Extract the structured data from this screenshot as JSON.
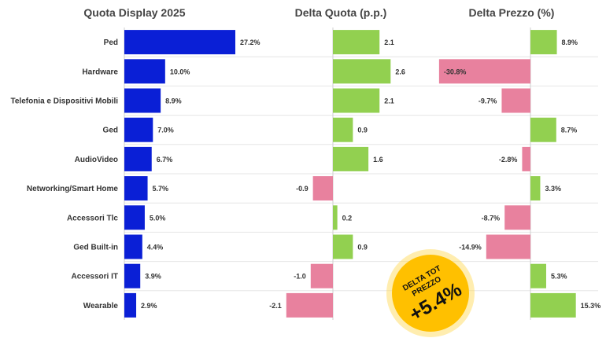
{
  "headers": {
    "quota": "Quota Display 2025",
    "delta_quota": "Delta Quota (p.p.)",
    "delta_prezzo": "Delta Prezzo (%)"
  },
  "badge": {
    "line1": "DELTA TOT",
    "line2": "PREZZO",
    "value": "+5.4%"
  },
  "colors": {
    "quota_bar": "#0a1fd6",
    "positive": "#92d050",
    "negative": "#e8819e",
    "badge_fill": "#ffc000",
    "badge_glow": "#ffd84d"
  },
  "chart_data": [
    {
      "type": "bar",
      "orientation": "horizontal",
      "title": "Quota Display 2025",
      "categories": [
        "Ped",
        "Hardware",
        "Telefonia e Dispositivi Mobili",
        "Ged",
        "AudioVideo",
        "Networking/Smart Home",
        "Accessori Tlc",
        "Ged Built-in",
        "Accessori IT",
        "Wearable"
      ],
      "values": [
        27.2,
        10.0,
        8.9,
        7.0,
        6.7,
        5.7,
        5.0,
        4.4,
        3.9,
        2.9
      ],
      "labels": [
        "27.2%",
        "10.0%",
        "8.9%",
        "7.0%",
        "6.7%",
        "5.7%",
        "5.0%",
        "4.4%",
        "3.9%",
        "2.9%"
      ]
    },
    {
      "type": "bar",
      "orientation": "horizontal",
      "title": "Delta Quota (p.p.)",
      "categories": [
        "Ped",
        "Hardware",
        "Telefonia e Dispositivi Mobili",
        "Ged",
        "AudioVideo",
        "Networking/Smart Home",
        "Accessori Tlc",
        "Ged Built-in",
        "Accessori IT",
        "Wearable"
      ],
      "values": [
        2.1,
        2.6,
        2.1,
        0.9,
        1.6,
        -0.9,
        0.2,
        0.9,
        -1.0,
        -2.1
      ],
      "labels": [
        "2.1",
        "2.6",
        "2.1",
        "0.9",
        "1.6",
        "-0.9",
        "0.2",
        "0.9",
        "-1.0",
        "-2.1"
      ]
    },
    {
      "type": "bar",
      "orientation": "horizontal",
      "title": "Delta Prezzo (%)",
      "categories": [
        "Ped",
        "Hardware",
        "Telefonia e Dispositivi Mobili",
        "Ged",
        "AudioVideo",
        "Networking/Smart Home",
        "Accessori Tlc",
        "Ged Built-in",
        "Accessori IT",
        "Wearable"
      ],
      "values": [
        8.9,
        -30.8,
        -9.7,
        8.7,
        -2.8,
        3.3,
        -8.7,
        -14.9,
        5.3,
        15.3
      ],
      "labels": [
        "8.9%",
        "-30.8%",
        "-9.7%",
        "8.7%",
        "-2.8%",
        "3.3%",
        "-8.7%",
        "-14.9%",
        "5.3%",
        "15.3%"
      ]
    }
  ]
}
